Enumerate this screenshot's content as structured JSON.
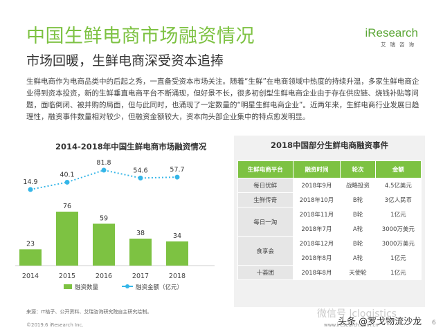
{
  "header": {
    "title": "中国生鲜电商市场融资情况",
    "subtitle": "市场回暖，生鲜电商深受资本追捧",
    "logo_text": "iResearch",
    "logo_sub": "艾瑞咨询"
  },
  "intro": "生鲜电商作为电商品类中的后起之秀，一直备受资本市场关注。随着“生鲜”在电商领域中热度的持续升温，多家生鲜电商企业得到资本投资，新的生鲜垂直电商平台不断涌现，但好景不长，很多初创型生鲜电商企业由于存在供应链、烧钱补贴等问题，面临倒闭、被并购的局面，但与此同时，也涌现了一定数量的“明星生鲜电商企业”。近两年来，生鲜电商行业发展日趋理性，融资事件数量相对较少，但融资金额较大，资本向头部企业集中的特点愈发明显。",
  "chart_title": "2014-2018年中国生鲜电商市场融资情况",
  "chart_data": {
    "type": "bar",
    "title": "2014-2018年中国生鲜电商市场融资情况",
    "categories": [
      "2014",
      "2015",
      "2016",
      "2017",
      "2018"
    ],
    "series": [
      {
        "name": "融资数量",
        "type": "bar",
        "values": [
          23,
          76,
          59,
          38,
          34
        ],
        "color": "#7dc242"
      },
      {
        "name": "融资金额（亿元）",
        "type": "line",
        "values": [
          14.9,
          40.1,
          81.8,
          54.6,
          57.7
        ],
        "color": "#35b6e8"
      }
    ],
    "labels": {
      "bar": [
        "23",
        "76",
        "59",
        "38",
        "34"
      ],
      "line": [
        "14.9",
        "40.1",
        "81.8",
        "54.6",
        "57.7"
      ]
    },
    "legend_position": "bottom"
  },
  "table": {
    "title": "2018中国部分生鲜电商融资事件",
    "headers": [
      "生鲜电商平台",
      "融资时间",
      "轮次",
      "金额"
    ],
    "rows": [
      {
        "company": "每日优鲜",
        "rowspan": 1,
        "events": [
          [
            "2018年9月",
            "战略投资",
            "4.5亿美元"
          ]
        ]
      },
      {
        "company": "生鲜传奇",
        "rowspan": 1,
        "events": [
          [
            "2018年10月",
            "B轮",
            "3亿人民币"
          ]
        ]
      },
      {
        "company": "每日一淘",
        "rowspan": 2,
        "events": [
          [
            "2018年11月",
            "B轮",
            "1亿元"
          ],
          [
            "2018年7月",
            "A轮",
            "3000万美元"
          ]
        ]
      },
      {
        "company": "食享会",
        "rowspan": 2,
        "events": [
          [
            "2018年12月",
            "B轮",
            "3000万美元"
          ],
          [
            "2018年8月",
            "A轮",
            "1亿元"
          ]
        ]
      },
      {
        "company": "十荟团",
        "rowspan": 1,
        "events": [
          [
            "2018年8月",
            "天使轮",
            "1亿元"
          ]
        ]
      }
    ]
  },
  "footer": {
    "source": "来源：IT桔子、公开资料、艾瑞咨询研究院自主研究绘制。",
    "copyright": "©2019.6 iResearch Inc.",
    "url": "www.iresearch.com.cn",
    "page": "6",
    "watermark": "微信号 lclogistics",
    "attribution": "头条 @罗戈物流沙龙"
  },
  "colors": {
    "accent": "#7dc242",
    "line": "#35b6e8",
    "panel_bg": "#f1f1f1"
  }
}
